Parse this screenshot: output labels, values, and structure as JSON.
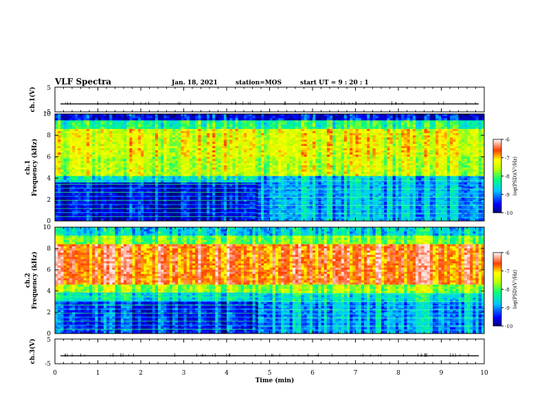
{
  "header": {
    "title": "VLF Spectra",
    "date": "Jan. 18, 2021",
    "station": "station=MOS",
    "start": "start UT =  9 : 20 : 1"
  },
  "chart_data": [
    {
      "type": "line",
      "panel": "ch1-waveform",
      "ylabel": "ch.1(V)",
      "ylim": [
        -5,
        5
      ],
      "yticks": [
        "5",
        "-5"
      ],
      "description_values": {
        "baseline": -1.8
      },
      "color": "#000000"
    },
    {
      "type": "heatmap",
      "panel": "ch1-spectrogram",
      "ylabel": "ch.1\nFrequency (kHz)",
      "ylim": [
        0,
        10
      ],
      "yticks": [
        "0",
        "2",
        "4",
        "6",
        "8",
        "10"
      ],
      "xlim": [
        0,
        10
      ],
      "transition_time_min": 4.7,
      "band_profile_before": {
        "intense_kHz": [
          3.8,
          9.2
        ],
        "weak_kHz": [
          0,
          3.8
        ]
      },
      "band_profile_after": {
        "intense_kHz": [
          4.5,
          9.2
        ],
        "weak_kHz": [
          0,
          4.5
        ]
      },
      "colorbar": {
        "label": "log(PSD)(V²/Hz)",
        "ticks": [
          "-6",
          "-7",
          "-8",
          "-9",
          "-10"
        ],
        "range": [
          -10,
          -6
        ]
      }
    },
    {
      "type": "heatmap",
      "panel": "ch2-spectrogram",
      "ylabel": "ch.2\nFrequency (kHz)",
      "ylim": [
        0,
        10
      ],
      "yticks": [
        "0",
        "2",
        "4",
        "6",
        "8",
        "10"
      ],
      "xlim": [
        0,
        10
      ],
      "transition_time_min": 4.7,
      "band_profile": {
        "intense_kHz": [
          4.5,
          8.3
        ],
        "weak_kHz": [
          0,
          3
        ]
      },
      "colorbar": {
        "label": "log(PSD)(V²/Hz)",
        "ticks": [
          "-6",
          "-7",
          "-8",
          "-9",
          "-10"
        ],
        "range": [
          -10,
          -6
        ]
      }
    },
    {
      "type": "line",
      "panel": "ch3-waveform",
      "ylabel": "ch.3(V)",
      "ylim": [
        -5,
        5
      ],
      "yticks": [
        "5",
        "-5"
      ],
      "description_values": {
        "baseline": -1.8
      },
      "color": "#000000"
    }
  ],
  "xaxis": {
    "label": "Time (min)",
    "range": [
      0,
      10
    ],
    "ticks": [
      "0",
      "1",
      "2",
      "3",
      "4",
      "5",
      "6",
      "7",
      "8",
      "9",
      "10"
    ]
  }
}
